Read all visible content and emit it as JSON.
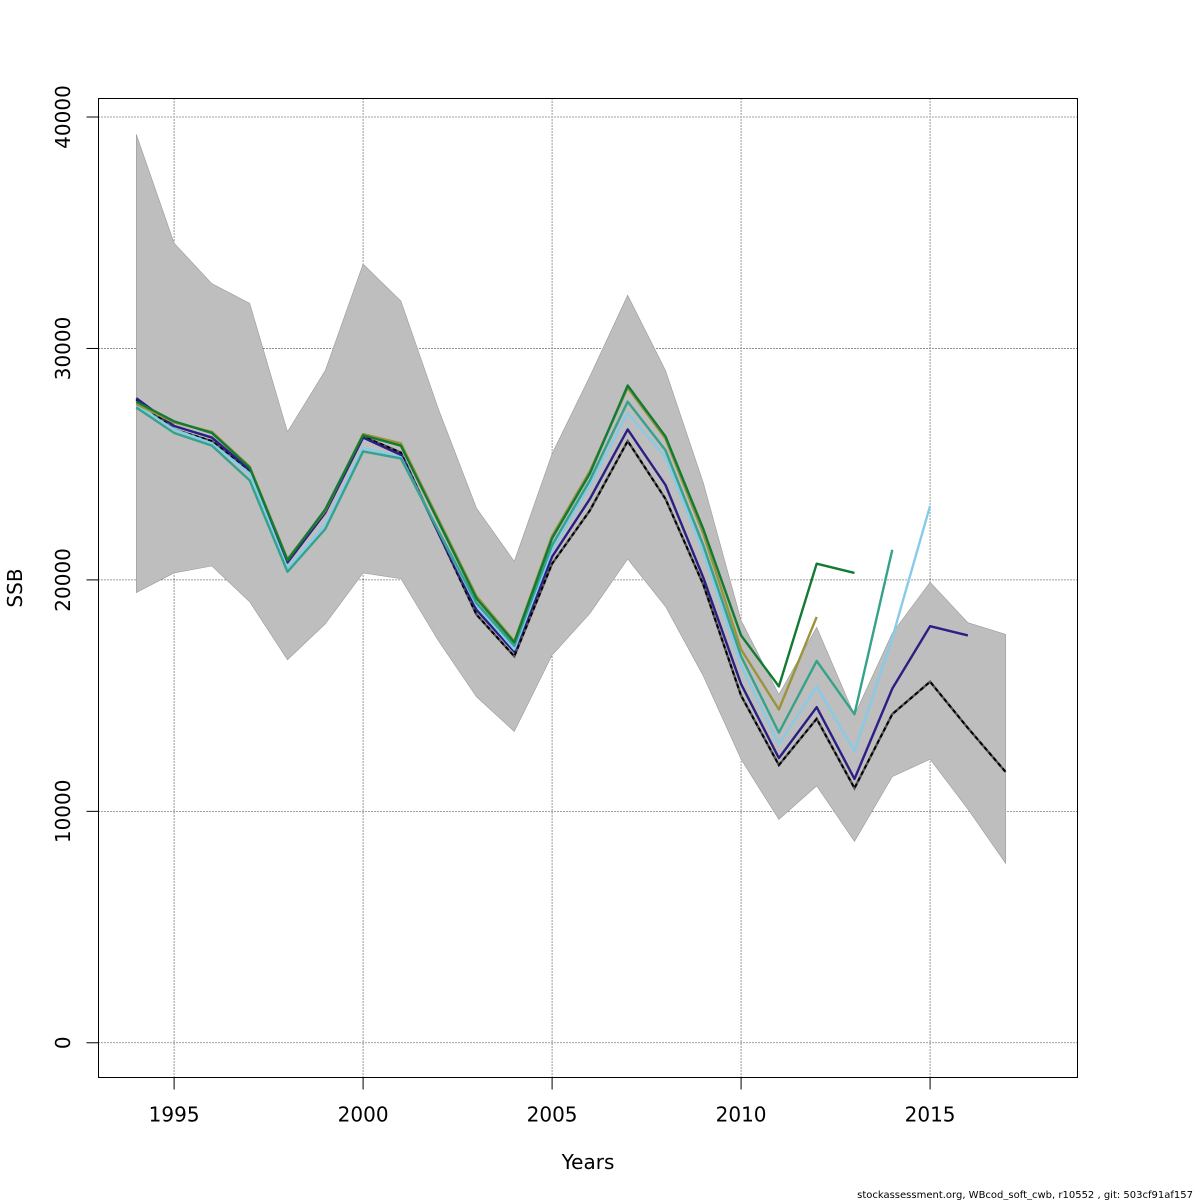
{
  "chart_data": {
    "type": "line",
    "title": "",
    "xlabel": "Years",
    "ylabel": "SSB",
    "xlim": [
      1993,
      2018.9
    ],
    "ylim": [
      -1500,
      40800
    ],
    "x_ticks": [
      1995,
      2000,
      2005,
      2010,
      2015
    ],
    "y_ticks": [
      0,
      10000,
      20000,
      30000,
      40000
    ],
    "grid": true,
    "legend": "none",
    "confidence_band": {
      "color": "#bebebe",
      "x": [
        1994,
        1995,
        1996,
        1997,
        1998,
        1999,
        2000,
        2001,
        2002,
        2003,
        2004,
        2005,
        2006,
        2007,
        2008,
        2009,
        2010,
        2011,
        2012,
        2013,
        2014,
        2015,
        2016,
        2017
      ],
      "lower": [
        19450,
        20300,
        20600,
        19050,
        16550,
        18100,
        20300,
        20050,
        17350,
        14950,
        13450,
        16750,
        18550,
        20900,
        18850,
        15850,
        12250,
        9650,
        11100,
        8700,
        11500,
        12250,
        10100,
        7750
      ],
      "upper": [
        39250,
        34550,
        32800,
        31950,
        26400,
        29050,
        33650,
        32050,
        27350,
        23100,
        20800,
        25450,
        28800,
        32300,
        29050,
        24200,
        18250,
        15050,
        17950,
        14150,
        17700,
        19900,
        18150,
        17650
      ]
    },
    "series": [
      {
        "color": "#000000",
        "dashed": true,
        "x": [
          1994,
          1995,
          1996,
          1997,
          1998,
          1999,
          2000,
          2001,
          2002,
          2003,
          2004,
          2005,
          2006,
          2007,
          2008,
          2009,
          2010,
          2011,
          2012,
          2013,
          2014,
          2015,
          2016,
          2017
        ],
        "y": [
          27800,
          26500,
          26000,
          24700,
          20800,
          23000,
          26200,
          25500,
          22000,
          18500,
          16700,
          20700,
          23000,
          26000,
          23500,
          19800,
          15000,
          12000,
          14000,
          11000,
          14200,
          15600,
          13600,
          11700
        ]
      },
      {
        "color": "#2b1e85",
        "x": [
          1994,
          1995,
          1996,
          1997,
          1998,
          1999,
          2000,
          2001,
          2002,
          2003,
          2004,
          2005,
          2006,
          2007,
          2008,
          2009,
          2010,
          2011,
          2012,
          2013,
          2014,
          2015,
          2016
        ],
        "y": [
          27850,
          26650,
          26150,
          24750,
          20750,
          22900,
          26150,
          25400,
          22000,
          18700,
          16900,
          21000,
          23500,
          26500,
          24100,
          20100,
          15500,
          12300,
          14500,
          11400,
          15300,
          18000,
          17600
        ]
      },
      {
        "color": "#87cbe8",
        "x": [
          1994,
          1995,
          1996,
          1997,
          1998,
          1999,
          2000,
          2001,
          2002,
          2003,
          2004,
          2005,
          2006,
          2007,
          2008,
          2009,
          2010,
          2011,
          2012,
          2013,
          2014,
          2015
        ],
        "y": [
          27550,
          26500,
          25900,
          24600,
          20500,
          22400,
          25700,
          25300,
          22100,
          18900,
          17000,
          21300,
          24100,
          27200,
          25300,
          21200,
          16300,
          12900,
          15400,
          12600,
          17500,
          23200
        ]
      },
      {
        "color": "#35a28a",
        "x": [
          1994,
          1995,
          1996,
          1997,
          1998,
          1999,
          2000,
          2001,
          2002,
          2003,
          2004,
          2005,
          2006,
          2007,
          2008,
          2009,
          2010,
          2011,
          2012,
          2013,
          2014
        ],
        "y": [
          27450,
          26350,
          25800,
          24300,
          20350,
          22200,
          25550,
          25250,
          22100,
          19000,
          17150,
          21500,
          24300,
          27700,
          25600,
          21500,
          16700,
          13400,
          16500,
          14200,
          21300
        ]
      },
      {
        "color": "#9a943a",
        "x": [
          1994,
          1995,
          1996,
          1997,
          1998,
          1999,
          2000,
          2001,
          2002,
          2003,
          2004,
          2005,
          2006,
          2007,
          2008,
          2009,
          2010,
          2011,
          2012
        ],
        "y": [
          27600,
          26800,
          26400,
          24900,
          20900,
          23000,
          26300,
          25900,
          22600,
          19300,
          17350,
          21900,
          24700,
          28300,
          26100,
          22000,
          17000,
          14400,
          18400
        ]
      },
      {
        "color": "#137a33",
        "x": [
          1994,
          1995,
          1996,
          1997,
          1998,
          1999,
          2000,
          2001,
          2002,
          2003,
          2004,
          2005,
          2006,
          2007,
          2008,
          2009,
          2010,
          2011,
          2012,
          2013
        ],
        "y": [
          27700,
          26850,
          26350,
          24850,
          20850,
          23050,
          26250,
          25800,
          22500,
          19200,
          17300,
          21800,
          24600,
          28400,
          26200,
          22200,
          17600,
          15400,
          20700,
          20300
        ]
      }
    ]
  },
  "footer": "stockassessment.org, WBcod_soft_cwb, r10552 , git: 503cf91af157"
}
